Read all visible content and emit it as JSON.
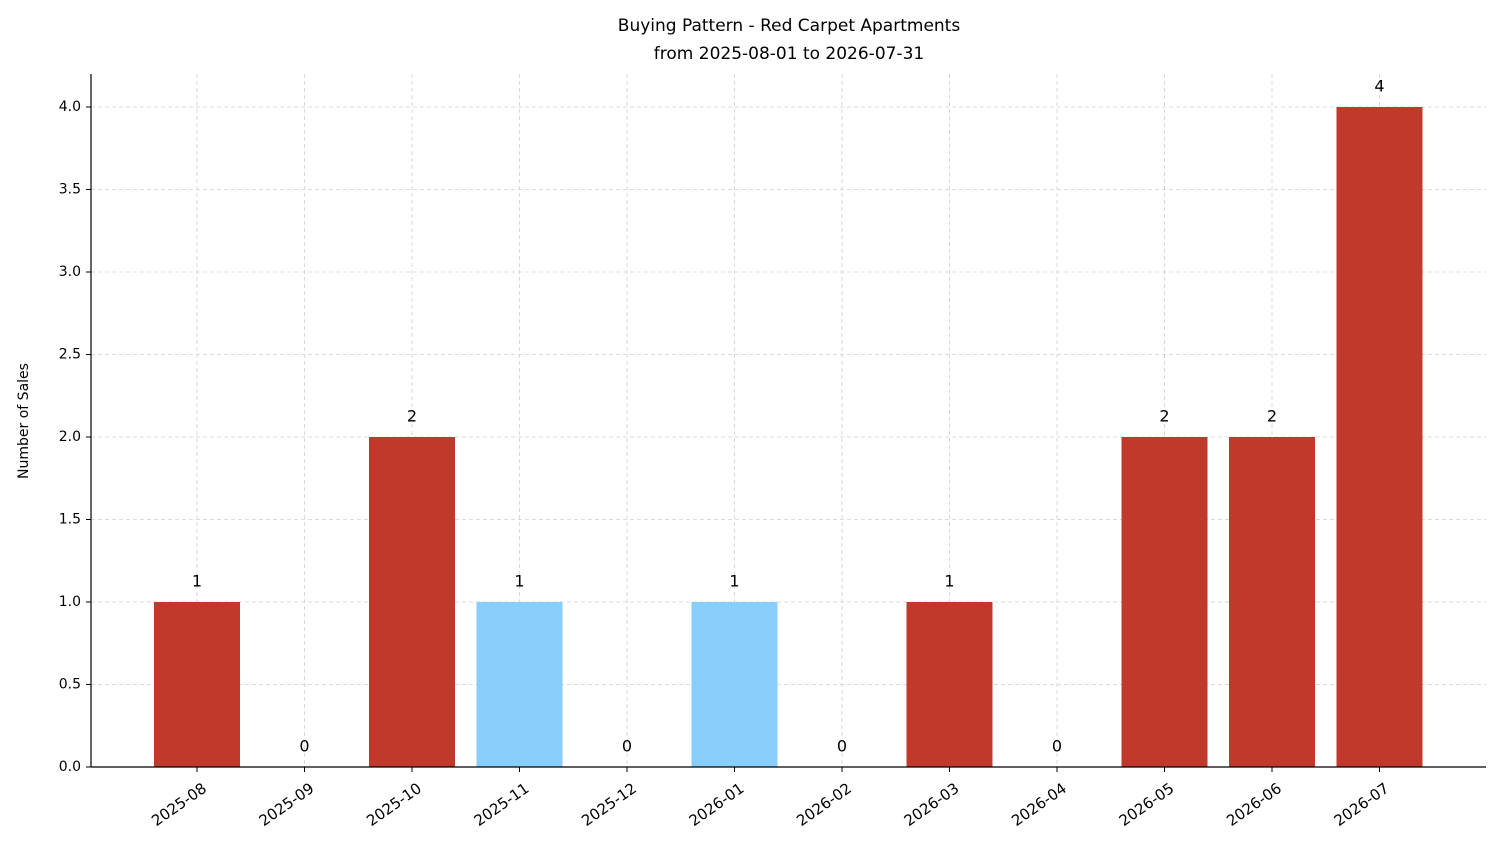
{
  "chart_data": {
    "type": "bar",
    "title": "Buying Pattern - Red Carpet Apartments",
    "subtitle": "from 2025-08-01 to 2026-07-31",
    "y_label": "Number of Sales",
    "categories": [
      "2025-08",
      "2025-09",
      "2025-10",
      "2025-11",
      "2025-12",
      "2026-01",
      "2026-02",
      "2026-03",
      "2026-04",
      "2026-05",
      "2026-06",
      "2026-07"
    ],
    "values": [
      1,
      0,
      2,
      1,
      0,
      1,
      0,
      1,
      0,
      2,
      2,
      4
    ],
    "colors": [
      "#c0392b",
      "#c0392b",
      "#c0392b",
      "#87cefa",
      "#c0392b",
      "#87cefa",
      "#c0392b",
      "#c0392b",
      "#c0392b",
      "#c0392b",
      "#c0392b",
      "#c0392b"
    ],
    "ylim": [
      0,
      4.2
    ],
    "yticks": [
      {
        "value": 0,
        "label": "0.0"
      },
      {
        "value": 0.5,
        "label": "0.5"
      },
      {
        "value": 1,
        "label": "1.0"
      },
      {
        "value": 1.5,
        "label": "1.5"
      },
      {
        "value": 2,
        "label": "2.0"
      },
      {
        "value": 2.5,
        "label": "2.5"
      },
      {
        "value": 3,
        "label": "3.0"
      },
      {
        "value": 3.5,
        "label": "3.5"
      },
      {
        "value": 4,
        "label": "4.0"
      }
    ],
    "grid": true
  }
}
